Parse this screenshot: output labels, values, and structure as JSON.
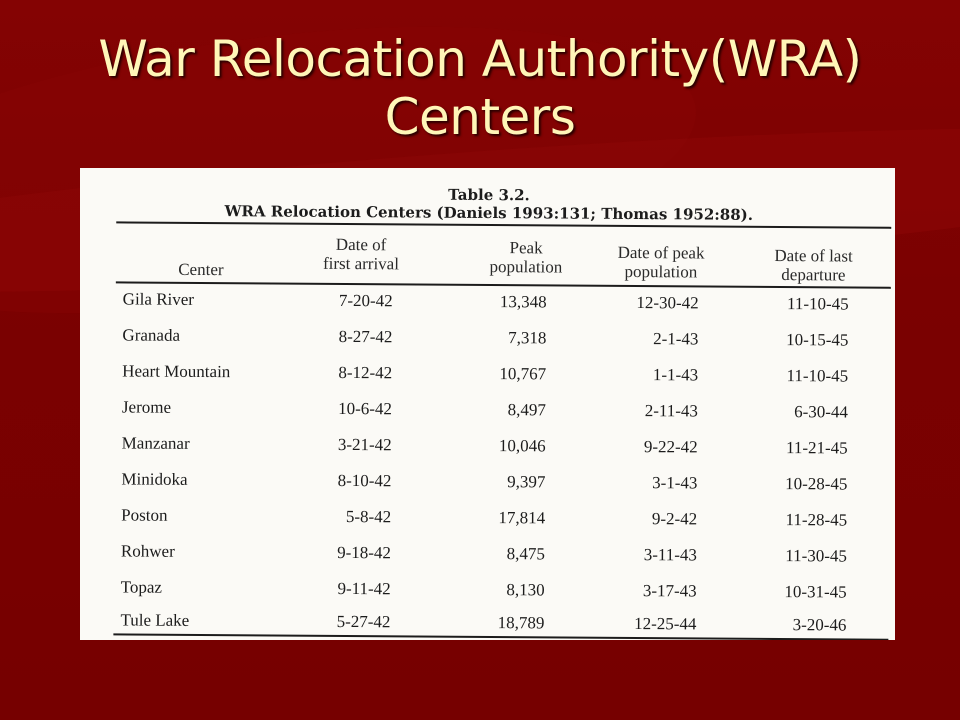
{
  "slide": {
    "title_line1": "War Relocation Authority(WRA)",
    "title_line2": "Centers"
  },
  "table": {
    "label": "Table 3.2.",
    "caption": "WRA Relocation Centers (Daniels 1993:131; Thomas 1952:88).",
    "headers": {
      "center": "Center",
      "first_arrival_1": "Date of",
      "first_arrival_2": "first arrival",
      "peak_1": "Peak",
      "peak_2": "population",
      "peak_date_1": "Date of peak",
      "peak_date_2": "population",
      "last_dep_1": "Date of last",
      "last_dep_2": "departure"
    },
    "rows": [
      {
        "center": "Gila River",
        "first_arrival": "7-20-42",
        "peak_population": "13,348",
        "peak_date": "12-30-42",
        "last_departure": "11-10-45"
      },
      {
        "center": "Granada",
        "first_arrival": "8-27-42",
        "peak_population": "7,318",
        "peak_date": "2-1-43",
        "last_departure": "10-15-45"
      },
      {
        "center": "Heart Mountain",
        "first_arrival": "8-12-42",
        "peak_population": "10,767",
        "peak_date": "1-1-43",
        "last_departure": "11-10-45"
      },
      {
        "center": "Jerome",
        "first_arrival": "10-6-42",
        "peak_population": "8,497",
        "peak_date": "2-11-43",
        "last_departure": "6-30-44"
      },
      {
        "center": "Manzanar",
        "first_arrival": "3-21-42",
        "peak_population": "10,046",
        "peak_date": "9-22-42",
        "last_departure": "11-21-45"
      },
      {
        "center": "Minidoka",
        "first_arrival": "8-10-42",
        "peak_population": "9,397",
        "peak_date": "3-1-43",
        "last_departure": "10-28-45"
      },
      {
        "center": "Poston",
        "first_arrival": "5-8-42",
        "peak_population": "17,814",
        "peak_date": "9-2-42",
        "last_departure": "11-28-45"
      },
      {
        "center": "Rohwer",
        "first_arrival": "9-18-42",
        "peak_population": "8,475",
        "peak_date": "3-11-43",
        "last_departure": "11-30-45"
      },
      {
        "center": "Topaz",
        "first_arrival": "9-11-42",
        "peak_population": "8,130",
        "peak_date": "3-17-43",
        "last_departure": "10-31-45"
      },
      {
        "center": "Tule Lake",
        "first_arrival": "5-27-42",
        "peak_population": "18,789",
        "peak_date": "12-25-44",
        "last_departure": "3-20-46"
      }
    ]
  },
  "colors": {
    "background": "#7a0000",
    "title_text": "#fff6b8",
    "scan_paper": "#fbfaf6"
  }
}
